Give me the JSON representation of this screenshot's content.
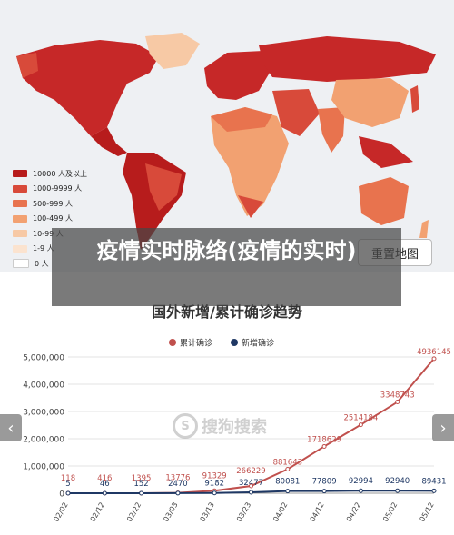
{
  "map": {
    "legend": [
      {
        "label": "10000 人及以上",
        "color": "#b71c1c"
      },
      {
        "label": "1000-9999 人",
        "color": "#d84a3a"
      },
      {
        "label": "500-999 人",
        "color": "#e8734e"
      },
      {
        "label": "100-499 人",
        "color": "#f2a171"
      },
      {
        "label": "10-99 人",
        "color": "#f7c9a5"
      },
      {
        "label": "1-9 人",
        "color": "#fbe3cf"
      },
      {
        "label": "0 人",
        "color": "#ffffff"
      }
    ],
    "reset_label": "重置地图"
  },
  "caption": "疫情实时脉络(疫情的实时)",
  "watermark": {
    "text": "搜狗搜索",
    "logo": "S"
  },
  "nav": {
    "prev_icon": "‹",
    "next_icon": "›"
  },
  "chart_data": {
    "type": "line",
    "title": "国外新增/累计确诊趋势",
    "categories": [
      "02/02",
      "02/12",
      "02/22",
      "03/03",
      "03/13",
      "03/23",
      "04/02",
      "04/12",
      "04/22",
      "05/02",
      "05/12"
    ],
    "ylim": [
      0,
      5000000
    ],
    "yticks": [
      "0",
      "1,000,000",
      "2,000,000",
      "3,000,000",
      "4,000,000",
      "5,000,000"
    ],
    "series": [
      {
        "name": "累计确诊",
        "color": "#c0504d",
        "values": [
          118,
          416,
          1395,
          13776,
          91329,
          266229,
          881643,
          1718629,
          2514184,
          3348743,
          4936145
        ],
        "labels": [
          "118",
          "416",
          "1395",
          "13776",
          "91329",
          "266229",
          "881643",
          "1718629",
          "2514184",
          "3348743",
          "4936145"
        ]
      },
      {
        "name": "新增确诊",
        "color": "#1f3864",
        "values": [
          5,
          46,
          152,
          2470,
          9182,
          32477,
          80081,
          77809,
          92994,
          92940,
          89431
        ],
        "labels": [
          "5",
          "46",
          "152",
          "2470",
          "9182",
          "32477",
          "80081",
          "77809",
          "92994",
          "92940",
          "89431"
        ]
      }
    ]
  }
}
